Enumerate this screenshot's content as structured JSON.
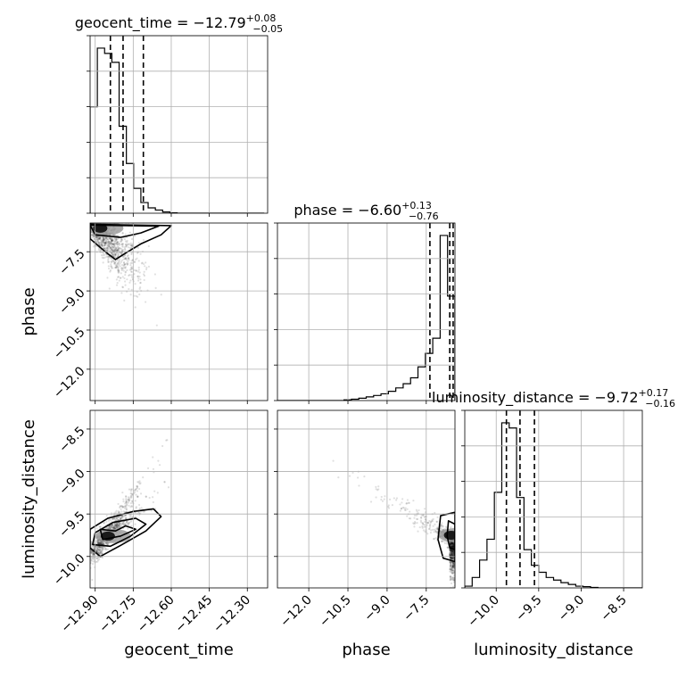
{
  "chart_data": {
    "type": "corner",
    "parameters": [
      {
        "name": "geocent_time",
        "title_main": "geocent_time = −12.79",
        "title_sup": "+0.08",
        "title_sub": "−0.05",
        "median": -12.79,
        "plus": 0.08,
        "minus": 0.05,
        "quantiles": [
          -12.84,
          -12.79,
          -12.71
        ],
        "range": [
          -12.92,
          -12.22
        ],
        "ticks": [
          -12.9,
          -12.75,
          -12.6,
          -12.45,
          -12.3
        ],
        "tick_labels": [
          "−12.90",
          "−12.75",
          "−12.60",
          "−12.45",
          "−12.30"
        ],
        "axis_label": "geocent_time",
        "hist_bin_start": -12.92,
        "hist_bin_width": 0.0286,
        "histogram": [
          0.6,
          0.93,
          0.9,
          0.85,
          0.49,
          0.28,
          0.14,
          0.06,
          0.03,
          0.018,
          0.007,
          0.002,
          0,
          0,
          0,
          0,
          0,
          0,
          0,
          0,
          0,
          0,
          0,
          0
        ]
      },
      {
        "name": "phase",
        "title_main": "phase = −6.60",
        "title_sup": "+0.13",
        "title_sub": "−0.76",
        "median": -6.6,
        "plus": 0.13,
        "minus": 0.76,
        "quantiles": [
          -7.36,
          -6.6,
          -6.47
        ],
        "range": [
          -13.2,
          -6.4
        ],
        "ticks": [
          -12.0,
          -10.5,
          -9.0,
          -7.5
        ],
        "tick_labels": [
          "−12.0",
          "−10.5",
          "−9.0",
          "−7.5"
        ],
        "axis_label": "phase",
        "hist_bin_start": -13.2,
        "hist_bin_width": 0.2833,
        "histogram": [
          0,
          0,
          0,
          0,
          0,
          0,
          0,
          0,
          0,
          0.004,
          0.008,
          0.014,
          0.022,
          0.03,
          0.04,
          0.055,
          0.075,
          0.1,
          0.135,
          0.2,
          0.28,
          0.37,
          0.98,
          0.62
        ]
      },
      {
        "name": "luminosity_distance",
        "title_main": "luminosity_distance = −9.72",
        "title_sup": "+0.17",
        "title_sub": "−0.16",
        "median": -9.72,
        "plus": 0.17,
        "minus": 0.16,
        "quantiles": [
          -9.88,
          -9.72,
          -9.55
        ],
        "range": [
          -10.37,
          -8.28
        ],
        "ticks": [
          -10.0,
          -9.5,
          -9.0,
          -8.5
        ],
        "tick_labels": [
          "−10.0",
          "−9.5",
          "−9.0",
          "−8.5"
        ],
        "axis_label": "luminosity_distance",
        "hist_bin_start": -10.37,
        "hist_bin_width": 0.0871,
        "histogram": [
          0.01,
          0.06,
          0.16,
          0.28,
          0.55,
          0.95,
          0.92,
          0.52,
          0.22,
          0.13,
          0.09,
          0.06,
          0.045,
          0.03,
          0.02,
          0.01,
          0.007,
          0.003,
          0,
          0,
          0,
          0,
          0,
          0
        ]
      }
    ],
    "scatter_dist": {
      "1_0": {
        "scatter_axes": "phase vs geocent_time",
        "count": 1000
      },
      "2_0": {
        "scatter_axes": "luminosity_distance vs geocent_time",
        "count": 1000
      },
      "2_1": {
        "scatter_axes": "luminosity_distance vs phase",
        "count": 1000
      }
    },
    "density_peaks": {
      "1_0": [
        -12.88,
        -6.6
      ],
      "2_0": [
        -12.85,
        -9.76
      ],
      "2_1": [
        -6.55,
        -9.75
      ]
    },
    "contours": {
      "1_0": [
        [
          [
            -12.9,
            -6.85
          ],
          [
            -12.8,
            -6.95
          ],
          [
            -12.72,
            -6.78
          ],
          [
            -12.65,
            -6.52
          ],
          [
            -12.92,
            -6.48
          ]
        ],
        [
          [
            -12.92,
            -7.0
          ],
          [
            -12.86,
            -7.5
          ],
          [
            -12.82,
            -7.8
          ],
          [
            -12.78,
            -7.55
          ],
          [
            -12.72,
            -7.2
          ],
          [
            -12.64,
            -6.85
          ],
          [
            -12.6,
            -6.5
          ],
          [
            -12.92,
            -6.45
          ]
        ]
      ],
      "2_0": [
        [
          [
            -12.88,
            -9.68
          ],
          [
            -12.82,
            -9.7
          ],
          [
            -12.78,
            -9.64
          ],
          [
            -12.74,
            -9.68
          ],
          [
            -12.8,
            -9.76
          ],
          [
            -12.87,
            -9.8
          ]
        ],
        [
          [
            -12.9,
            -9.72
          ],
          [
            -12.83,
            -9.6
          ],
          [
            -12.74,
            -9.55
          ],
          [
            -12.7,
            -9.62
          ],
          [
            -12.76,
            -9.76
          ],
          [
            -12.84,
            -9.88
          ],
          [
            -12.91,
            -9.86
          ]
        ],
        [
          [
            -12.92,
            -9.68
          ],
          [
            -12.85,
            -9.55
          ],
          [
            -12.75,
            -9.47
          ],
          [
            -12.67,
            -9.44
          ],
          [
            -12.64,
            -9.53
          ],
          [
            -12.7,
            -9.7
          ],
          [
            -12.8,
            -9.87
          ],
          [
            -12.88,
            -10.0
          ],
          [
            -12.92,
            -9.9
          ]
        ]
      ],
      "2_1": [
        [
          [
            -6.4,
            -9.62
          ],
          [
            -6.65,
            -9.58
          ],
          [
            -6.7,
            -9.76
          ],
          [
            -6.6,
            -9.9
          ],
          [
            -6.4,
            -9.92
          ]
        ],
        [
          [
            -6.4,
            -9.48
          ],
          [
            -6.95,
            -9.52
          ],
          [
            -7.05,
            -9.8
          ],
          [
            -6.85,
            -10.02
          ],
          [
            -6.4,
            -10.06
          ]
        ]
      ]
    }
  }
}
